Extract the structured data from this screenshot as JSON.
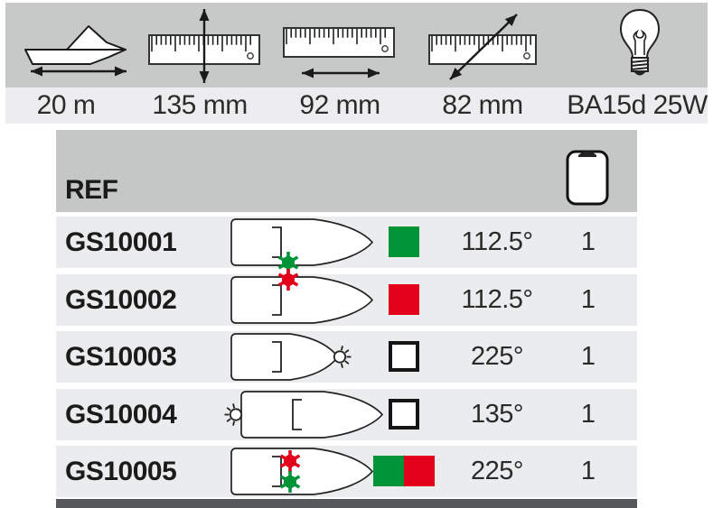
{
  "palette": {
    "green": "#009338",
    "red": "#e2001a",
    "white": "#ffffff",
    "band_gray": "#c7c8c8",
    "spec_band_gray": "#ededef",
    "header_gray": "#c5c6c6",
    "row_gray": "#ebecee",
    "bottom_bar": "#56585b",
    "ink": "#1d1d1b"
  },
  "header": {
    "specs": [
      {
        "icon": "boat-length-icon",
        "value": "20 m"
      },
      {
        "icon": "ruler-height-icon",
        "value": "135 mm"
      },
      {
        "icon": "ruler-width-icon",
        "value": "92 mm"
      },
      {
        "icon": "ruler-diagonal-icon",
        "value": "82 mm"
      },
      {
        "icon": "bulb-icon",
        "value": "BA15d 25W"
      }
    ]
  },
  "table": {
    "ref_header": "REF",
    "pack_icon": "pack-quantity-icon",
    "rows": [
      {
        "ref": "GS10001",
        "boat": "starboard-green",
        "swatch": [
          "green"
        ],
        "angle": "112.5°",
        "qty": "1"
      },
      {
        "ref": "GS10002",
        "boat": "port-red",
        "swatch": [
          "red"
        ],
        "angle": "112.5°",
        "qty": "1"
      },
      {
        "ref": "GS10003",
        "boat": "bow-white",
        "swatch": [
          "white"
        ],
        "angle": "225°",
        "qty": "1"
      },
      {
        "ref": "GS10004",
        "boat": "stern-white",
        "swatch": [
          "white"
        ],
        "angle": "135°",
        "qty": "1"
      },
      {
        "ref": "GS10005",
        "boat": "bicolor",
        "swatch": [
          "green",
          "red"
        ],
        "angle": "225°",
        "qty": "1"
      }
    ]
  }
}
